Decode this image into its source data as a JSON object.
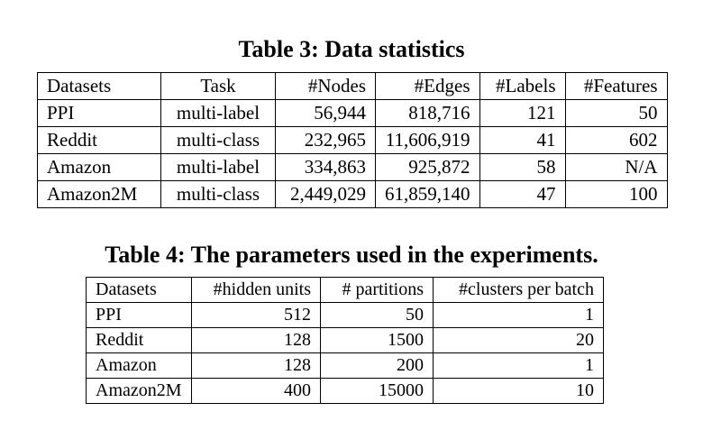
{
  "table3": {
    "caption": "Table 3: Data statistics",
    "headers": [
      "Datasets",
      "Task",
      "#Nodes",
      "#Edges",
      "#Labels",
      "#Features"
    ],
    "rows": [
      [
        "PPI",
        "multi-label",
        "56,944",
        "818,716",
        "121",
        "50"
      ],
      [
        "Reddit",
        "multi-class",
        "232,965",
        "11,606,919",
        "41",
        "602"
      ],
      [
        "Amazon",
        "multi-label",
        "334,863",
        "925,872",
        "58",
        "N/A"
      ],
      [
        "Amazon2M",
        "multi-class",
        "2,449,029",
        "61,859,140",
        "47",
        "100"
      ]
    ]
  },
  "table4": {
    "caption": "Table 4: The parameters used in the experiments.",
    "headers": [
      "Datasets",
      "#hidden units",
      "# partitions",
      "#clusters per batch"
    ],
    "rows": [
      [
        "PPI",
        "512",
        "50",
        "1"
      ],
      [
        "Reddit",
        "128",
        "1500",
        "20"
      ],
      [
        "Amazon",
        "128",
        "200",
        "1"
      ],
      [
        "Amazon2M",
        "400",
        "15000",
        "10"
      ]
    ]
  }
}
